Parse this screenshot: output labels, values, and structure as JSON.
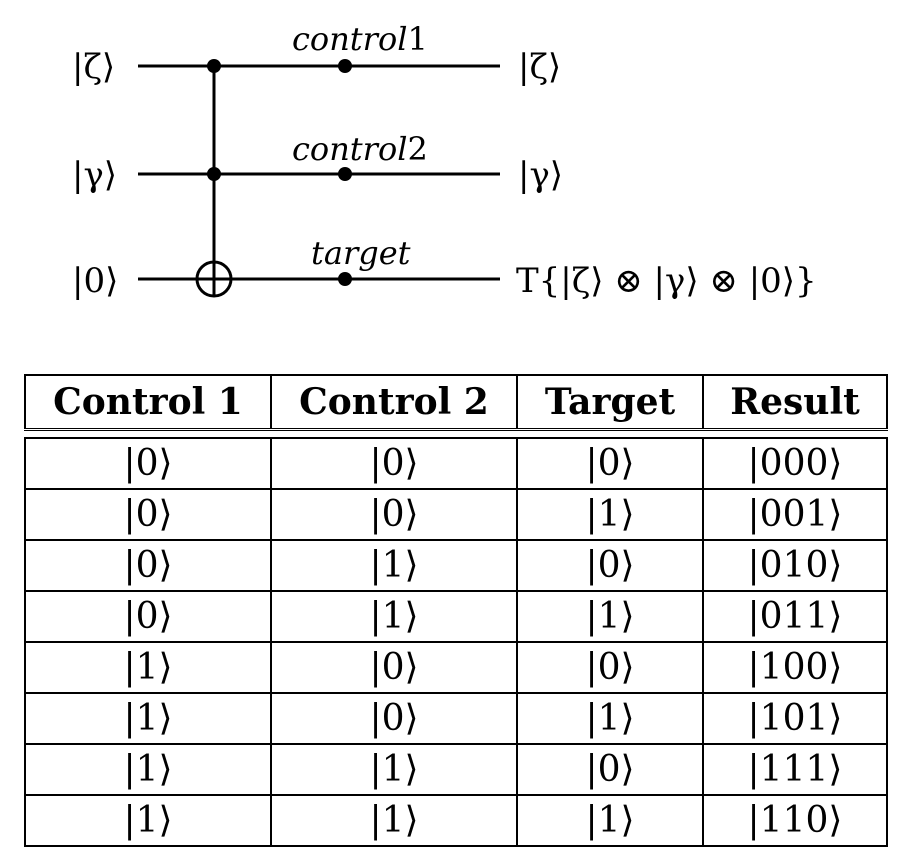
{
  "circuit": {
    "qubits": [
      {
        "input": "|ζ⟩",
        "wire_label": "control",
        "wire_label_num": "1",
        "output": "|ζ⟩"
      },
      {
        "input": "|γ⟩",
        "wire_label": "control",
        "wire_label_num": "2",
        "output": "|γ⟩"
      },
      {
        "input": "|0⟩",
        "wire_label": "target",
        "wire_label_num": "",
        "output": "T{|ζ⟩ ⊗ |γ⟩ ⊗ |0⟩}"
      }
    ],
    "gate": "toffoli"
  },
  "truth_table": {
    "headers": [
      "Control 1",
      "Control 2",
      "Target",
      "Result"
    ],
    "rows": [
      [
        "|0⟩",
        "|0⟩",
        "|0⟩",
        "|000⟩"
      ],
      [
        "|0⟩",
        "|0⟩",
        "|1⟩",
        "|001⟩"
      ],
      [
        "|0⟩",
        "|1⟩",
        "|0⟩",
        "|010⟩"
      ],
      [
        "|0⟩",
        "|1⟩",
        "|1⟩",
        "|011⟩"
      ],
      [
        "|1⟩",
        "|0⟩",
        "|0⟩",
        "|100⟩"
      ],
      [
        "|1⟩",
        "|0⟩",
        "|1⟩",
        "|101⟩"
      ],
      [
        "|1⟩",
        "|1⟩",
        "|0⟩",
        "|111⟩"
      ],
      [
        "|1⟩",
        "|1⟩",
        "|1⟩",
        "|110⟩"
      ]
    ]
  }
}
